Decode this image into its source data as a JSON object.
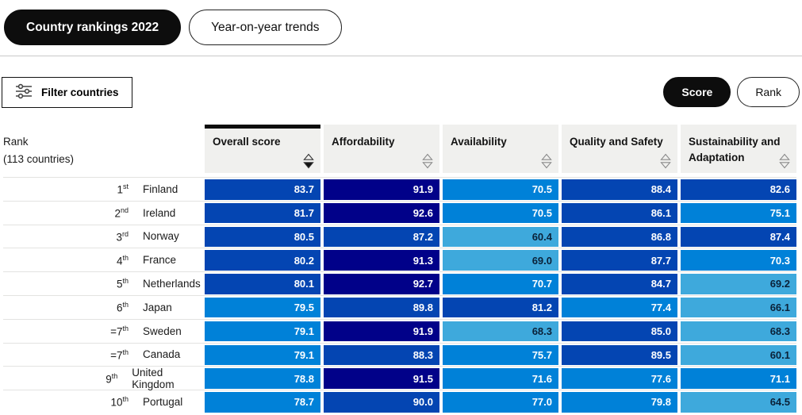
{
  "tabs": {
    "items": [
      {
        "label": "Country rankings 2022",
        "active": true
      },
      {
        "label": "Year-on-year trends",
        "active": false
      }
    ]
  },
  "toolbar": {
    "filter_button": {
      "label": "Filter countries",
      "icon": "sliders-icon"
    }
  },
  "view_toggle": {
    "items": [
      {
        "label": "Score",
        "active": true
      },
      {
        "label": "Rank",
        "active": false
      }
    ]
  },
  "table": {
    "rank_header": {
      "line1": "Rank",
      "line2": "(113 countries)"
    },
    "columns": [
      {
        "label": "Overall score",
        "sort": "desc"
      },
      {
        "label": "Affordability",
        "sort": "none"
      },
      {
        "label": "Availability",
        "sort": "none"
      },
      {
        "label": "Quality and Safety",
        "sort": "none"
      },
      {
        "label": "Sustainability and Adaptation",
        "sort": "none"
      }
    ],
    "score_color_bands": [
      {
        "min": 91,
        "bg": "#010189",
        "text": "#ffffff"
      },
      {
        "min": 80,
        "bg": "#0445b2",
        "text": "#ffffff"
      },
      {
        "min": 70,
        "bg": "#0081d8",
        "text": "#ffffff"
      },
      {
        "min": 0,
        "bg": "#3ea9dc",
        "text": "#0b2239"
      }
    ],
    "rows": [
      {
        "rank": "1",
        "ordinal": "st",
        "country": "Finland",
        "scores": [
          83.7,
          91.9,
          70.5,
          88.4,
          82.6
        ]
      },
      {
        "rank": "2",
        "ordinal": "nd",
        "country": "Ireland",
        "scores": [
          81.7,
          92.6,
          70.5,
          86.1,
          75.1
        ]
      },
      {
        "rank": "3",
        "ordinal": "rd",
        "country": "Norway",
        "scores": [
          80.5,
          87.2,
          60.4,
          86.8,
          87.4
        ]
      },
      {
        "rank": "4",
        "ordinal": "th",
        "country": "France",
        "scores": [
          80.2,
          91.3,
          69.0,
          87.7,
          70.3
        ]
      },
      {
        "rank": "5",
        "ordinal": "th",
        "country": "Netherlands",
        "scores": [
          80.1,
          92.7,
          70.7,
          84.7,
          69.2
        ]
      },
      {
        "rank": "6",
        "ordinal": "th",
        "country": "Japan",
        "scores": [
          79.5,
          89.8,
          81.2,
          77.4,
          66.1
        ]
      },
      {
        "rank": "=7",
        "ordinal": "th",
        "country": "Sweden",
        "scores": [
          79.1,
          91.9,
          68.3,
          85.0,
          68.3
        ]
      },
      {
        "rank": "=7",
        "ordinal": "th",
        "country": "Canada",
        "scores": [
          79.1,
          88.3,
          75.7,
          89.5,
          60.1
        ]
      },
      {
        "rank": "9",
        "ordinal": "th",
        "country": "United Kingdom",
        "scores": [
          78.8,
          91.5,
          71.6,
          77.6,
          71.1
        ]
      },
      {
        "rank": "10",
        "ordinal": "th",
        "country": "Portugal",
        "scores": [
          78.7,
          90.0,
          77.0,
          79.8,
          64.5
        ]
      }
    ]
  }
}
